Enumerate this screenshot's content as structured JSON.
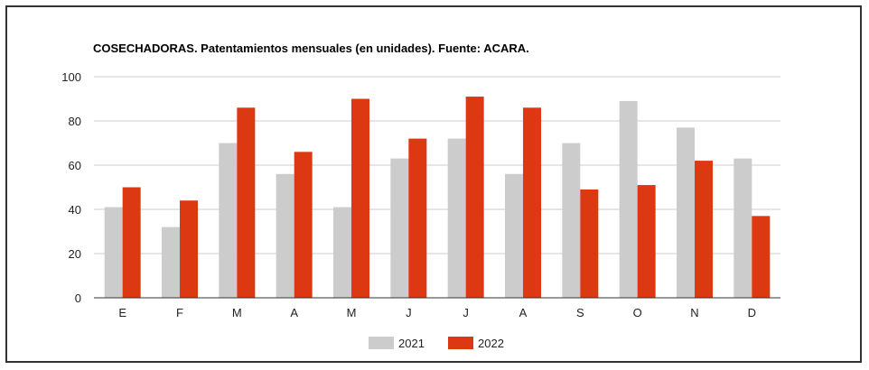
{
  "chart_data": {
    "type": "bar",
    "title": "COSECHADORAS. Patentamientos mensuales (en unidades). Fuente: ACARA.",
    "xlabel": "",
    "ylabel": "",
    "categories": [
      "E",
      "F",
      "M",
      "A",
      "M",
      "J",
      "J",
      "A",
      "S",
      "O",
      "N",
      "D"
    ],
    "series": [
      {
        "name": "2021",
        "color": "#cccccc",
        "values": [
          41,
          32,
          70,
          56,
          41,
          63,
          72,
          56,
          70,
          89,
          77,
          63
        ]
      },
      {
        "name": "2022",
        "color": "#dc3912",
        "values": [
          50,
          44,
          86,
          66,
          90,
          72,
          91,
          86,
          49,
          51,
          62,
          37
        ]
      }
    ],
    "ylim": [
      0,
      100
    ],
    "yticks": [
      0,
      20,
      40,
      60,
      80,
      100
    ],
    "grid": true,
    "legend_position": "bottom"
  }
}
